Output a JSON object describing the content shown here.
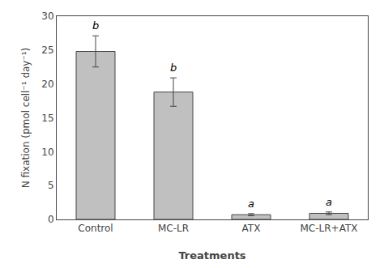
{
  "chart_data": {
    "type": "bar",
    "categories": [
      "Control",
      "MC-LR",
      "ATX",
      "MC-LR+ATX"
    ],
    "values": [
      24.8,
      18.8,
      0.7,
      0.9
    ],
    "errors": [
      2.3,
      2.1,
      0.15,
      0.2
    ],
    "annotations": [
      "b",
      "b",
      "a",
      "a"
    ],
    "color": "#C0C0C0",
    "xlabel": "Treatments",
    "ylabel": "N fixation (pmol cell⁻¹ day⁻¹)",
    "ylim": [
      0,
      30
    ],
    "yticks": [
      0,
      5,
      10,
      15,
      20,
      25,
      30
    ],
    "grid": false
  }
}
